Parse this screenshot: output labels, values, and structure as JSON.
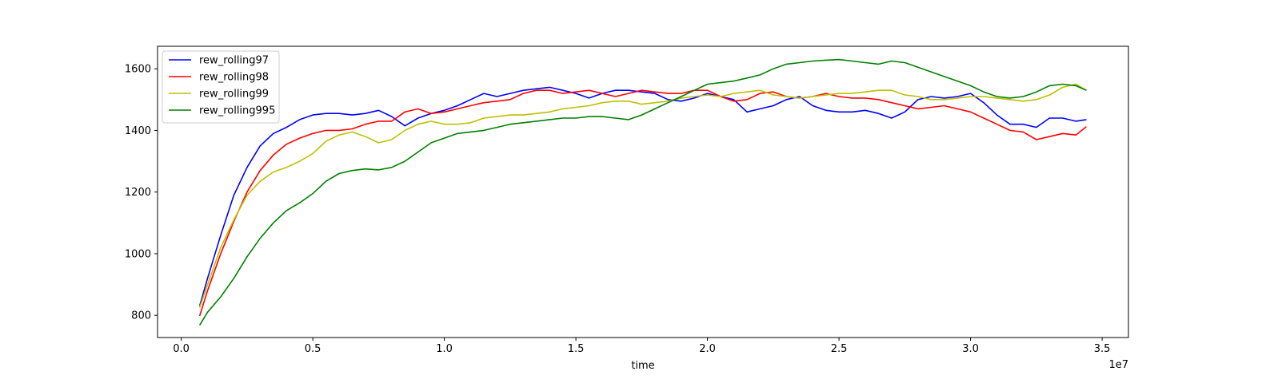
{
  "chart_data": {
    "type": "line",
    "title": "",
    "xlabel": "time",
    "ylabel": "",
    "x_multiplier_label": "1e7",
    "xlim": [
      -0.09,
      3.6
    ],
    "ylim": [
      728,
      1673
    ],
    "xticks": [
      0.0,
      0.5,
      1.0,
      1.5,
      2.0,
      2.5,
      3.0,
      3.5
    ],
    "xtick_labels": [
      "0.0",
      "0.5",
      "1.0",
      "1.5",
      "2.0",
      "2.5",
      "3.0",
      "3.5"
    ],
    "yticks": [
      800,
      1000,
      1200,
      1400,
      1600
    ],
    "ytick_labels": [
      "800",
      "1000",
      "1200",
      "1400",
      "1600"
    ],
    "grid": false,
    "legend_position": "top-left",
    "series": [
      {
        "name": "rew_rolling97",
        "color": "#0000ff",
        "x": [
          0.07,
          0.1,
          0.15,
          0.2,
          0.25,
          0.3,
          0.35,
          0.4,
          0.45,
          0.5,
          0.55,
          0.6,
          0.65,
          0.7,
          0.75,
          0.8,
          0.85,
          0.9,
          0.95,
          1.0,
          1.05,
          1.1,
          1.15,
          1.2,
          1.25,
          1.3,
          1.35,
          1.4,
          1.45,
          1.5,
          1.55,
          1.6,
          1.65,
          1.7,
          1.75,
          1.8,
          1.85,
          1.9,
          1.95,
          2.0,
          2.05,
          2.1,
          2.15,
          2.2,
          2.25,
          2.3,
          2.35,
          2.4,
          2.45,
          2.5,
          2.55,
          2.6,
          2.65,
          2.7,
          2.75,
          2.8,
          2.85,
          2.9,
          2.95,
          3.0,
          3.05,
          3.1,
          3.15,
          3.2,
          3.25,
          3.3,
          3.35,
          3.4,
          3.44
        ],
        "y": [
          830,
          920,
          1060,
          1190,
          1280,
          1350,
          1390,
          1410,
          1435,
          1450,
          1455,
          1455,
          1450,
          1455,
          1465,
          1445,
          1415,
          1440,
          1455,
          1465,
          1480,
          1500,
          1520,
          1510,
          1520,
          1530,
          1535,
          1540,
          1530,
          1520,
          1505,
          1520,
          1530,
          1530,
          1525,
          1520,
          1500,
          1495,
          1505,
          1520,
          1510,
          1500,
          1460,
          1470,
          1480,
          1500,
          1510,
          1480,
          1465,
          1460,
          1460,
          1465,
          1455,
          1440,
          1460,
          1500,
          1510,
          1505,
          1510,
          1520,
          1490,
          1450,
          1420,
          1420,
          1410,
          1440,
          1440,
          1430,
          1435
        ]
      },
      {
        "name": "rew_rolling98",
        "color": "#ff0000",
        "x": [
          0.07,
          0.1,
          0.15,
          0.2,
          0.25,
          0.3,
          0.35,
          0.4,
          0.45,
          0.5,
          0.55,
          0.6,
          0.65,
          0.7,
          0.75,
          0.8,
          0.85,
          0.9,
          0.95,
          1.0,
          1.05,
          1.1,
          1.15,
          1.2,
          1.25,
          1.3,
          1.35,
          1.4,
          1.45,
          1.5,
          1.55,
          1.6,
          1.65,
          1.7,
          1.75,
          1.8,
          1.85,
          1.9,
          1.95,
          2.0,
          2.05,
          2.1,
          2.15,
          2.2,
          2.25,
          2.3,
          2.35,
          2.4,
          2.45,
          2.5,
          2.55,
          2.6,
          2.65,
          2.7,
          2.75,
          2.8,
          2.85,
          2.9,
          2.95,
          3.0,
          3.05,
          3.1,
          3.15,
          3.2,
          3.25,
          3.3,
          3.35,
          3.4,
          3.44
        ],
        "y": [
          798,
          880,
          1000,
          1105,
          1200,
          1270,
          1320,
          1355,
          1375,
          1390,
          1400,
          1400,
          1405,
          1420,
          1430,
          1430,
          1460,
          1470,
          1455,
          1460,
          1470,
          1480,
          1490,
          1495,
          1500,
          1520,
          1530,
          1530,
          1520,
          1525,
          1530,
          1520,
          1510,
          1520,
          1530,
          1525,
          1520,
          1520,
          1530,
          1530,
          1510,
          1495,
          1500,
          1520,
          1525,
          1510,
          1505,
          1510,
          1520,
          1510,
          1505,
          1505,
          1500,
          1490,
          1480,
          1470,
          1475,
          1480,
          1470,
          1460,
          1440,
          1420,
          1400,
          1395,
          1370,
          1380,
          1390,
          1385,
          1412
        ]
      },
      {
        "name": "rew_rolling99",
        "color": "#bfbf00",
        "x": [
          0.07,
          0.1,
          0.15,
          0.2,
          0.25,
          0.3,
          0.35,
          0.4,
          0.45,
          0.5,
          0.55,
          0.6,
          0.65,
          0.7,
          0.75,
          0.8,
          0.85,
          0.9,
          0.95,
          1.0,
          1.05,
          1.1,
          1.15,
          1.2,
          1.25,
          1.3,
          1.35,
          1.4,
          1.45,
          1.5,
          1.55,
          1.6,
          1.65,
          1.7,
          1.75,
          1.8,
          1.85,
          1.9,
          1.95,
          2.0,
          2.05,
          2.1,
          2.15,
          2.2,
          2.25,
          2.3,
          2.35,
          2.4,
          2.45,
          2.5,
          2.55,
          2.6,
          2.65,
          2.7,
          2.75,
          2.8,
          2.85,
          2.9,
          2.95,
          3.0,
          3.05,
          3.1,
          3.15,
          3.2,
          3.25,
          3.3,
          3.35,
          3.4,
          3.44
        ],
        "y": [
          825,
          900,
          1020,
          1110,
          1190,
          1235,
          1265,
          1280,
          1300,
          1325,
          1365,
          1385,
          1395,
          1380,
          1360,
          1370,
          1400,
          1420,
          1430,
          1420,
          1420,
          1425,
          1440,
          1445,
          1450,
          1450,
          1455,
          1460,
          1470,
          1475,
          1480,
          1490,
          1495,
          1495,
          1485,
          1490,
          1495,
          1505,
          1510,
          1515,
          1510,
          1520,
          1525,
          1530,
          1515,
          1510,
          1505,
          1510,
          1515,
          1520,
          1520,
          1525,
          1530,
          1530,
          1515,
          1510,
          1500,
          1500,
          1505,
          1510,
          1510,
          1505,
          1500,
          1495,
          1500,
          1515,
          1540,
          1550,
          1530
        ]
      },
      {
        "name": "rew_rolling995",
        "color": "#008000",
        "x": [
          0.07,
          0.1,
          0.15,
          0.2,
          0.25,
          0.3,
          0.35,
          0.4,
          0.45,
          0.5,
          0.55,
          0.6,
          0.65,
          0.7,
          0.75,
          0.8,
          0.85,
          0.9,
          0.95,
          1.0,
          1.05,
          1.1,
          1.15,
          1.2,
          1.25,
          1.3,
          1.35,
          1.4,
          1.45,
          1.5,
          1.55,
          1.6,
          1.65,
          1.7,
          1.75,
          1.8,
          1.85,
          1.9,
          1.95,
          2.0,
          2.05,
          2.1,
          2.15,
          2.2,
          2.25,
          2.3,
          2.35,
          2.4,
          2.45,
          2.5,
          2.55,
          2.6,
          2.65,
          2.7,
          2.75,
          2.8,
          2.85,
          2.9,
          2.95,
          3.0,
          3.05,
          3.1,
          3.15,
          3.2,
          3.25,
          3.3,
          3.35,
          3.4,
          3.44
        ],
        "y": [
          768,
          810,
          860,
          920,
          990,
          1050,
          1100,
          1140,
          1165,
          1195,
          1235,
          1260,
          1270,
          1275,
          1272,
          1280,
          1300,
          1330,
          1360,
          1375,
          1390,
          1395,
          1400,
          1410,
          1420,
          1425,
          1430,
          1435,
          1440,
          1440,
          1445,
          1445,
          1440,
          1435,
          1450,
          1470,
          1490,
          1510,
          1530,
          1550,
          1555,
          1560,
          1570,
          1580,
          1600,
          1615,
          1620,
          1625,
          1628,
          1630,
          1625,
          1620,
          1615,
          1625,
          1620,
          1605,
          1590,
          1575,
          1560,
          1545,
          1525,
          1510,
          1505,
          1510,
          1525,
          1545,
          1550,
          1545,
          1530
        ]
      }
    ]
  }
}
